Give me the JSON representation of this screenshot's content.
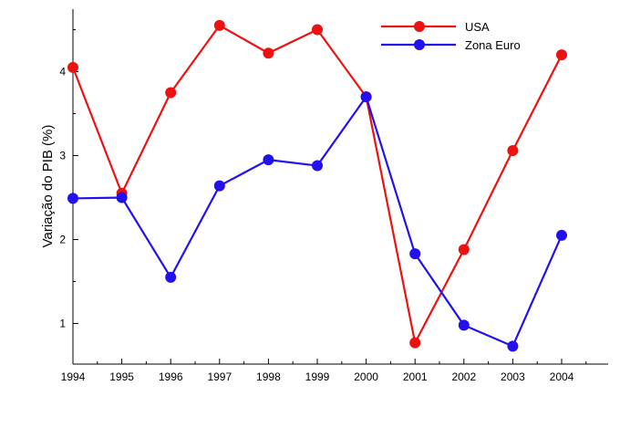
{
  "chart_data": {
    "type": "line",
    "title": "",
    "xlabel": "",
    "ylabel": "Variação do PIB (%)",
    "x": [
      1994,
      1995,
      1996,
      1997,
      1998,
      1999,
      2000,
      2001,
      2002,
      2003,
      2004
    ],
    "xlim": [
      1994,
      2004.95
    ],
    "ylim": [
      0.58,
      4.78
    ],
    "x_ticks": [
      "1994",
      "1995",
      "1996",
      "1997",
      "1998",
      "1999",
      "2000",
      "2001",
      "2002",
      "2003",
      "2004"
    ],
    "y_ticks": [
      "1",
      "2",
      "3",
      "4"
    ],
    "grid": false,
    "legend_position": "top-right",
    "series": [
      {
        "name": "USA",
        "color": "#ee1111",
        "values": [
          4.05,
          2.55,
          3.75,
          4.55,
          4.22,
          4.5,
          3.7,
          0.77,
          1.88,
          3.06,
          4.2
        ]
      },
      {
        "name": "Zona Euro",
        "color": "#2211ee",
        "values": [
          2.49,
          2.5,
          1.55,
          2.64,
          2.95,
          2.88,
          3.7,
          1.83,
          0.98,
          0.73,
          2.05
        ]
      }
    ]
  }
}
